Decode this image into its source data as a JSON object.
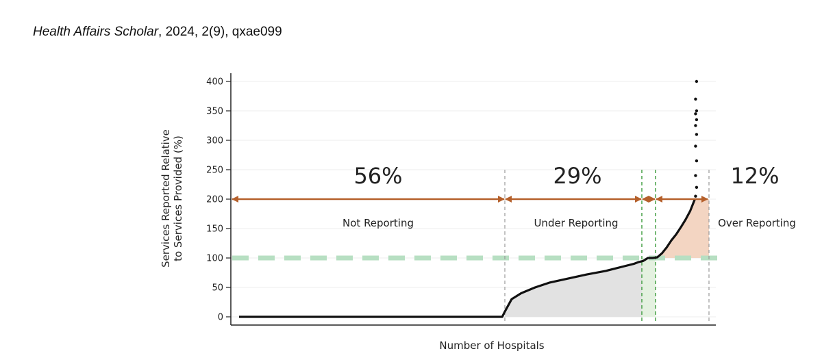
{
  "citation": {
    "journal": "Health Affairs Scholar",
    "details": ", 2024, 2(9), qxae099"
  },
  "chart_data": {
    "type": "scatter",
    "xlabel": "Number of Hospitals",
    "ylabel_lines": [
      "Services Reported Relative",
      "to Services Provided (%)"
    ],
    "ylim": [
      0,
      400
    ],
    "yticks": [
      0,
      50,
      100,
      150,
      200,
      250,
      300,
      350,
      400
    ],
    "reference_line": 100,
    "regions": [
      {
        "pct": "56%",
        "label": "Not Reporting"
      },
      {
        "pct": "29%",
        "label": "Under Reporting"
      },
      {
        "pct": "",
        "label": ""
      },
      {
        "pct": "12%",
        "label": "Over Reporting"
      }
    ],
    "curve": {
      "x": [
        0,
        0.56,
        0.565,
        0.58,
        0.6,
        0.63,
        0.66,
        0.7,
        0.74,
        0.78,
        0.82,
        0.84,
        0.85,
        0.86,
        0.87,
        0.88,
        0.89,
        0.9,
        0.91,
        0.92,
        0.93,
        0.94,
        0.95,
        0.96,
        0.965,
        0.97
      ],
      "y": [
        0,
        0,
        8,
        30,
        40,
        50,
        58,
        65,
        72,
        78,
        86,
        90,
        93,
        95,
        100,
        100,
        101,
        108,
        118,
        130,
        140,
        152,
        165,
        180,
        190,
        200
      ]
    },
    "tail_points": [
      205,
      220,
      240,
      265,
      290,
      310,
      325,
      335,
      345,
      350,
      370,
      400
    ],
    "colors": {
      "curve": "#111111",
      "arrow": "#b5602b",
      "under_fill": "#e2e2e2",
      "over_fill": "#f3d5c2",
      "equal_fill": "#e4f1e0",
      "reference": "#b7dfc2",
      "green_divider": "#3a9a3a",
      "gray_divider": "#9a9a9a"
    }
  }
}
